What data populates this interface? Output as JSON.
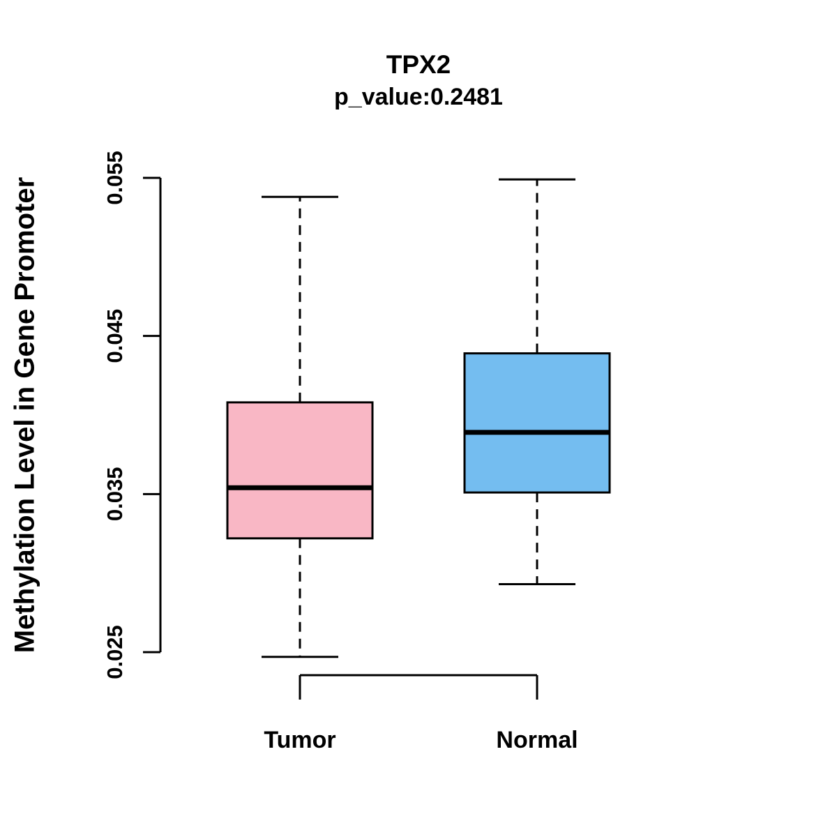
{
  "chart_data": {
    "type": "boxplot",
    "title": "TPX2",
    "subtitle": "p_value:0.2481",
    "ylabel": "Methylation Level in Gene Promoter",
    "categories": [
      "Tumor",
      "Normal"
    ],
    "ytick_labels": [
      "0.025",
      "0.035",
      "0.045",
      "0.055"
    ],
    "ylim": [
      0.025,
      0.055
    ],
    "grid": false,
    "legend": "none",
    "series": [
      {
        "name": "Tumor",
        "color": "#F9B7C5",
        "lower_whisker": 0.0247,
        "q1": 0.0322,
        "median": 0.0354,
        "q3": 0.0408,
        "upper_whisker": 0.0538
      },
      {
        "name": "Normal",
        "color": "#74BDF0",
        "lower_whisker": 0.0293,
        "q1": 0.0351,
        "median": 0.0389,
        "q3": 0.0439,
        "upper_whisker": 0.0549
      }
    ]
  }
}
